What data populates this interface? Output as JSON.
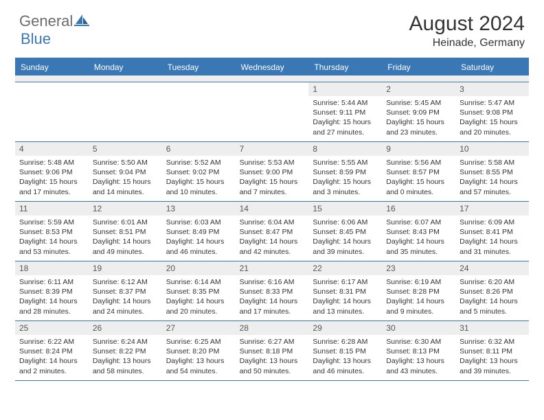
{
  "logo": {
    "part1": "General",
    "part2": "Blue"
  },
  "title": "August 2024",
  "location": "Heinade, Germany",
  "colors": {
    "accent": "#3a78b5",
    "header_bg": "#3a78b5",
    "daynum_bg": "#eeeeee",
    "text": "#333333",
    "logo_gray": "#6b6b6b"
  },
  "weekdays": [
    "Sunday",
    "Monday",
    "Tuesday",
    "Wednesday",
    "Thursday",
    "Friday",
    "Saturday"
  ],
  "weeks": [
    [
      null,
      null,
      null,
      null,
      {
        "n": "1",
        "sr": "5:44 AM",
        "ss": "9:11 PM",
        "dl": "15 hours and 27 minutes."
      },
      {
        "n": "2",
        "sr": "5:45 AM",
        "ss": "9:09 PM",
        "dl": "15 hours and 23 minutes."
      },
      {
        "n": "3",
        "sr": "5:47 AM",
        "ss": "9:08 PM",
        "dl": "15 hours and 20 minutes."
      }
    ],
    [
      {
        "n": "4",
        "sr": "5:48 AM",
        "ss": "9:06 PM",
        "dl": "15 hours and 17 minutes."
      },
      {
        "n": "5",
        "sr": "5:50 AM",
        "ss": "9:04 PM",
        "dl": "15 hours and 14 minutes."
      },
      {
        "n": "6",
        "sr": "5:52 AM",
        "ss": "9:02 PM",
        "dl": "15 hours and 10 minutes."
      },
      {
        "n": "7",
        "sr": "5:53 AM",
        "ss": "9:00 PM",
        "dl": "15 hours and 7 minutes."
      },
      {
        "n": "8",
        "sr": "5:55 AM",
        "ss": "8:59 PM",
        "dl": "15 hours and 3 minutes."
      },
      {
        "n": "9",
        "sr": "5:56 AM",
        "ss": "8:57 PM",
        "dl": "15 hours and 0 minutes."
      },
      {
        "n": "10",
        "sr": "5:58 AM",
        "ss": "8:55 PM",
        "dl": "14 hours and 57 minutes."
      }
    ],
    [
      {
        "n": "11",
        "sr": "5:59 AM",
        "ss": "8:53 PM",
        "dl": "14 hours and 53 minutes."
      },
      {
        "n": "12",
        "sr": "6:01 AM",
        "ss": "8:51 PM",
        "dl": "14 hours and 49 minutes."
      },
      {
        "n": "13",
        "sr": "6:03 AM",
        "ss": "8:49 PM",
        "dl": "14 hours and 46 minutes."
      },
      {
        "n": "14",
        "sr": "6:04 AM",
        "ss": "8:47 PM",
        "dl": "14 hours and 42 minutes."
      },
      {
        "n": "15",
        "sr": "6:06 AM",
        "ss": "8:45 PM",
        "dl": "14 hours and 39 minutes."
      },
      {
        "n": "16",
        "sr": "6:07 AM",
        "ss": "8:43 PM",
        "dl": "14 hours and 35 minutes."
      },
      {
        "n": "17",
        "sr": "6:09 AM",
        "ss": "8:41 PM",
        "dl": "14 hours and 31 minutes."
      }
    ],
    [
      {
        "n": "18",
        "sr": "6:11 AM",
        "ss": "8:39 PM",
        "dl": "14 hours and 28 minutes."
      },
      {
        "n": "19",
        "sr": "6:12 AM",
        "ss": "8:37 PM",
        "dl": "14 hours and 24 minutes."
      },
      {
        "n": "20",
        "sr": "6:14 AM",
        "ss": "8:35 PM",
        "dl": "14 hours and 20 minutes."
      },
      {
        "n": "21",
        "sr": "6:16 AM",
        "ss": "8:33 PM",
        "dl": "14 hours and 17 minutes."
      },
      {
        "n": "22",
        "sr": "6:17 AM",
        "ss": "8:31 PM",
        "dl": "14 hours and 13 minutes."
      },
      {
        "n": "23",
        "sr": "6:19 AM",
        "ss": "8:28 PM",
        "dl": "14 hours and 9 minutes."
      },
      {
        "n": "24",
        "sr": "6:20 AM",
        "ss": "8:26 PM",
        "dl": "14 hours and 5 minutes."
      }
    ],
    [
      {
        "n": "25",
        "sr": "6:22 AM",
        "ss": "8:24 PM",
        "dl": "14 hours and 2 minutes."
      },
      {
        "n": "26",
        "sr": "6:24 AM",
        "ss": "8:22 PM",
        "dl": "13 hours and 58 minutes."
      },
      {
        "n": "27",
        "sr": "6:25 AM",
        "ss": "8:20 PM",
        "dl": "13 hours and 54 minutes."
      },
      {
        "n": "28",
        "sr": "6:27 AM",
        "ss": "8:18 PM",
        "dl": "13 hours and 50 minutes."
      },
      {
        "n": "29",
        "sr": "6:28 AM",
        "ss": "8:15 PM",
        "dl": "13 hours and 46 minutes."
      },
      {
        "n": "30",
        "sr": "6:30 AM",
        "ss": "8:13 PM",
        "dl": "13 hours and 43 minutes."
      },
      {
        "n": "31",
        "sr": "6:32 AM",
        "ss": "8:11 PM",
        "dl": "13 hours and 39 minutes."
      }
    ]
  ],
  "labels": {
    "sunrise": "Sunrise: ",
    "sunset": "Sunset: ",
    "daylight": "Daylight: "
  }
}
